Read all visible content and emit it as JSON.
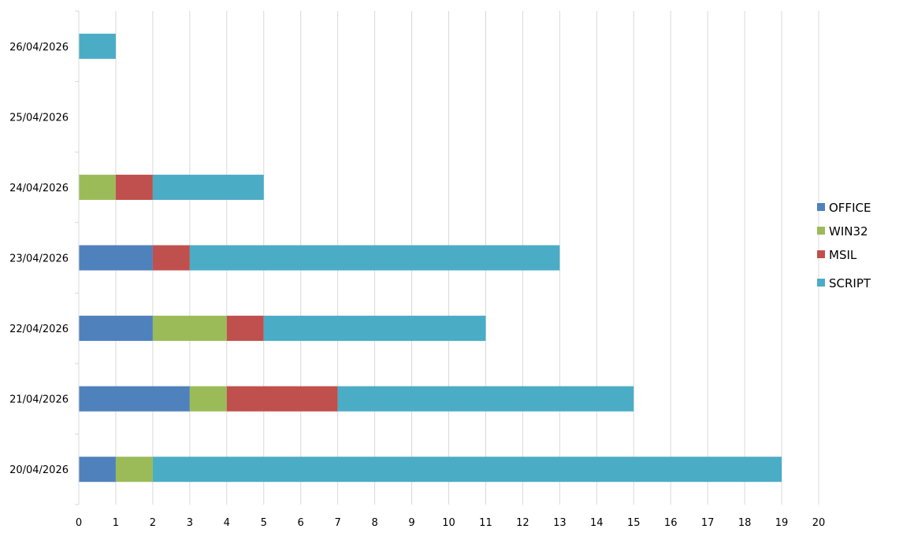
{
  "chart_data": {
    "type": "bar",
    "orientation": "horizontal",
    "stacked": true,
    "title": "",
    "xlabel": "",
    "ylabel": "",
    "xlim": [
      0,
      20
    ],
    "x_ticks": [
      "0",
      "1",
      "2",
      "3",
      "4",
      "5",
      "6",
      "7",
      "8",
      "9",
      "10",
      "11",
      "12",
      "13",
      "14",
      "15",
      "16",
      "17",
      "18",
      "19",
      "20"
    ],
    "grid": true,
    "legend_position": "right",
    "categories": [
      "20/04/2026",
      "21/04/2026",
      "22/04/2026",
      "23/04/2026",
      "24/04/2026",
      "25/04/2026",
      "26/04/2026"
    ],
    "series": [
      {
        "name": "OFFICE",
        "color": "#4f81bd",
        "values": [
          1,
          3,
          2,
          2,
          0,
          0,
          0
        ]
      },
      {
        "name": "WIN32",
        "color": "#9bbb59",
        "values": [
          1,
          1,
          2,
          0,
          1,
          0,
          0
        ]
      },
      {
        "name": "MSIL",
        "color": "#c0504d",
        "values": [
          0,
          3,
          1,
          1,
          1,
          0,
          0
        ]
      },
      {
        "name": "SCRIPT",
        "color": "#4bacc6",
        "values": [
          17,
          8,
          6,
          10,
          3,
          0,
          1
        ]
      }
    ]
  }
}
